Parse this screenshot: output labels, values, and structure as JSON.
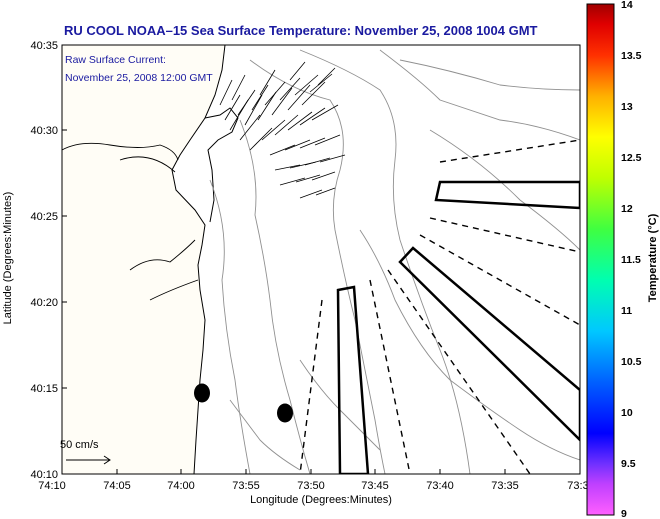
{
  "title": "RU COOL  NOAA–15  Sea Surface Temperature:  November 25, 2008 1004 GMT",
  "legend": {
    "current_label": "Raw Surface Current:",
    "current_date": "November 25, 2008 12:00 GMT",
    "scale_label": "50 cm/s"
  },
  "axes": {
    "xlabel": "Longitude (Degrees:Minutes)",
    "ylabel": "Latitude (Degrees:Minutes)",
    "xticks": [
      "74:10",
      "74:05",
      "74:00",
      "73:55",
      "73:50",
      "73:45",
      "73:40",
      "73:35",
      "73:3"
    ],
    "yticks": [
      "40:35",
      "40:30",
      "40:25",
      "40:20",
      "40:15",
      "40:10"
    ]
  },
  "colorbar": {
    "label": "Temperature (°C)",
    "ticks": [
      "14",
      "13.5",
      "13",
      "12.5",
      "12",
      "11.5",
      "11",
      "10.5",
      "10",
      "9.5",
      "9"
    ],
    "range": [
      9,
      14
    ]
  },
  "colors": {
    "title": "#1a1aa0",
    "land": "#fffdf6",
    "contour": "#909090"
  }
}
